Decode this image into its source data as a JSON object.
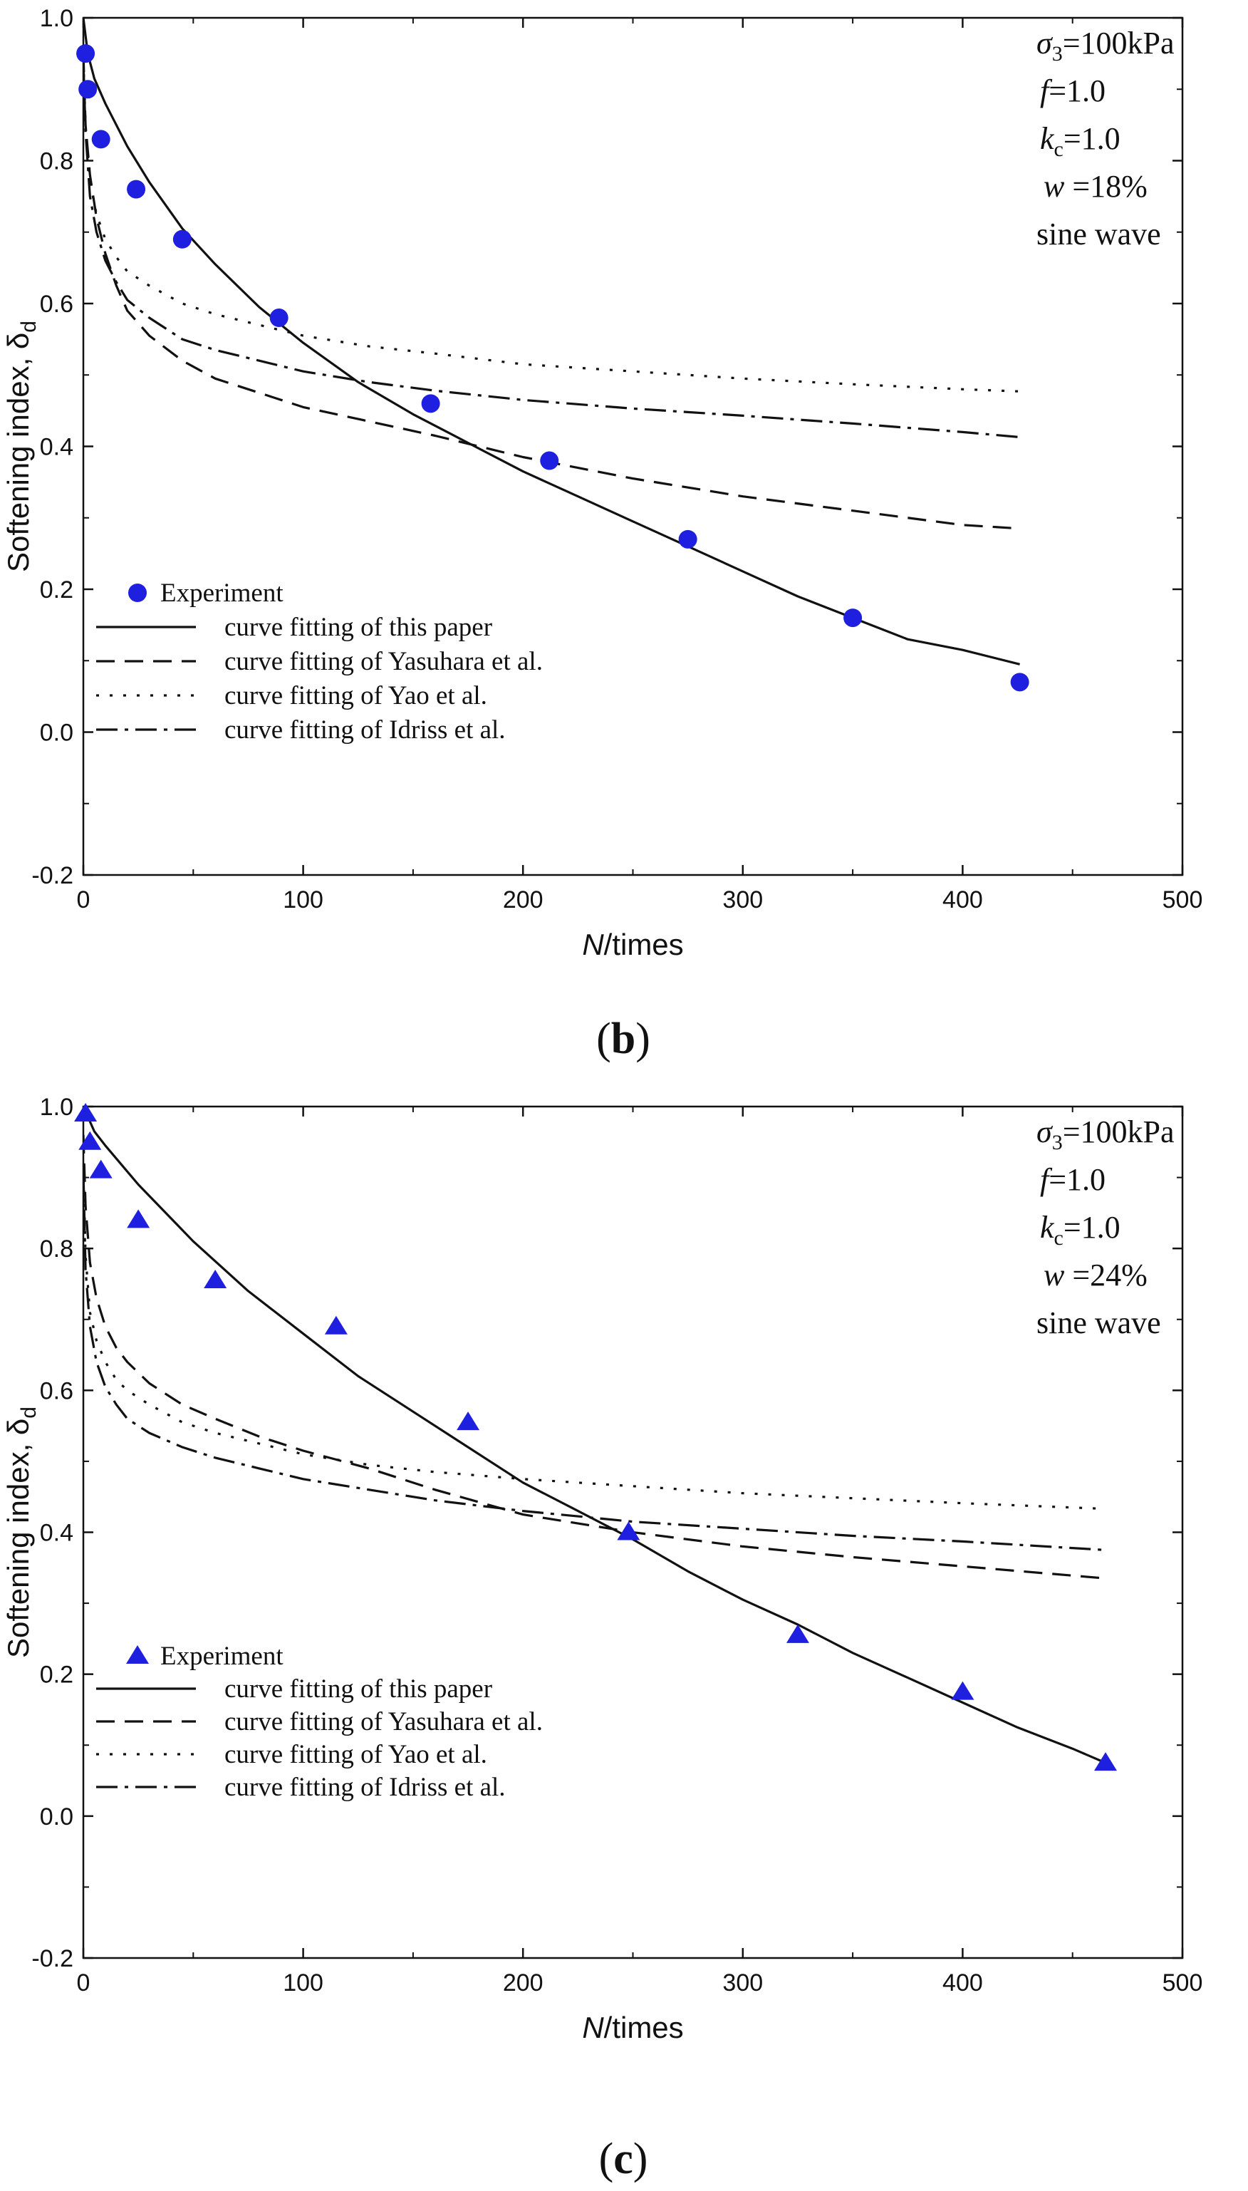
{
  "figure": {
    "panels": [
      {
        "label": "b",
        "annotation": {
          "sigma_symbol": "σ",
          "sigma_sub": "3",
          "sigma_value": "=100kPa",
          "f_symbol": "f",
          "f_value": "=1.0",
          "kc_symbol": "k",
          "kc_sub": "c",
          "kc_value": "=1.0",
          "w_symbol": "w",
          "w_value": " =18%",
          "wave": "sine wave"
        }
      },
      {
        "label": "c",
        "annotation": {
          "sigma_symbol": "σ",
          "sigma_sub": "3",
          "sigma_value": "=100kPa",
          "f_symbol": "f",
          "f_value": "=1.0",
          "kc_symbol": "k",
          "kc_sub": "c",
          "kc_value": "=1.0",
          "w_symbol": "w",
          "w_value": " =24%",
          "wave": "sine wave"
        }
      }
    ]
  },
  "chart_data": [
    {
      "type": "scatter",
      "panel": "b",
      "xlabel": "N/times",
      "xlabel_italic": "N",
      "xlabel_rest": "/times",
      "ylabel": "Softening index, δd",
      "ylabel_main": "Softening index, δ",
      "ylabel_sub": "d",
      "xlim": [
        0,
        500
      ],
      "ylim": [
        -0.2,
        1.0
      ],
      "xticks": [
        0,
        100,
        200,
        300,
        400,
        500
      ],
      "yticks": [
        -0.2,
        0.0,
        0.2,
        0.4,
        0.6,
        0.8,
        1.0
      ],
      "ytick_labels": [
        "-0.2",
        "0.0",
        "0.2",
        "0.4",
        "0.6",
        "0.8",
        "1.0"
      ],
      "legend_position": "bottom-left",
      "marker": "circle",
      "series": [
        {
          "name": "Experiment",
          "style": "marker",
          "x": [
            1,
            2,
            8,
            24,
            45,
            89,
            158,
            212,
            275,
            350,
            426
          ],
          "y": [
            0.95,
            0.9,
            0.83,
            0.76,
            0.69,
            0.58,
            0.46,
            0.38,
            0.27,
            0.16,
            0.07
          ]
        },
        {
          "name": "curve fitting of this paper",
          "style": "solid",
          "x": [
            0,
            2,
            5,
            10,
            20,
            30,
            45,
            60,
            80,
            100,
            125,
            150,
            175,
            200,
            225,
            250,
            275,
            300,
            325,
            350,
            375,
            400,
            426
          ],
          "y": [
            1.0,
            0.95,
            0.915,
            0.88,
            0.82,
            0.77,
            0.705,
            0.655,
            0.595,
            0.545,
            0.49,
            0.445,
            0.405,
            0.365,
            0.33,
            0.295,
            0.26,
            0.225,
            0.19,
            0.16,
            0.13,
            0.115,
            0.095
          ]
        },
        {
          "name": "curve fitting of Yasuhara et al.",
          "style": "dashed",
          "x": [
            0,
            1,
            3,
            6,
            10,
            15,
            20,
            30,
            45,
            60,
            80,
            100,
            130,
            160,
            200,
            250,
            300,
            350,
            400,
            426
          ],
          "y": [
            0.95,
            0.85,
            0.78,
            0.72,
            0.67,
            0.625,
            0.59,
            0.555,
            0.52,
            0.495,
            0.475,
            0.455,
            0.435,
            0.415,
            0.385,
            0.355,
            0.33,
            0.31,
            0.29,
            0.285
          ]
        },
        {
          "name": "curve fitting of Yao et al.",
          "style": "dotted",
          "x": [
            0,
            1,
            3,
            6,
            10,
            15,
            20,
            30,
            45,
            60,
            80,
            100,
            130,
            160,
            200,
            250,
            300,
            350,
            400,
            426
          ],
          "y": [
            0.94,
            0.85,
            0.77,
            0.725,
            0.69,
            0.665,
            0.645,
            0.625,
            0.6,
            0.585,
            0.57,
            0.555,
            0.54,
            0.53,
            0.515,
            0.505,
            0.495,
            0.487,
            0.48,
            0.477
          ]
        },
        {
          "name": "curve fitting of Idriss et al.",
          "style": "dashdot",
          "x": [
            0,
            1,
            3,
            6,
            10,
            15,
            20,
            30,
            45,
            60,
            80,
            100,
            130,
            160,
            200,
            250,
            300,
            350,
            400,
            426
          ],
          "y": [
            0.94,
            0.84,
            0.75,
            0.7,
            0.66,
            0.63,
            0.605,
            0.58,
            0.55,
            0.535,
            0.52,
            0.505,
            0.49,
            0.478,
            0.465,
            0.453,
            0.443,
            0.432,
            0.42,
            0.413
          ]
        }
      ]
    },
    {
      "type": "scatter",
      "panel": "c",
      "xlabel": "N/times",
      "xlabel_italic": "N",
      "xlabel_rest": "/times",
      "ylabel": "Softening index, δd",
      "ylabel_main": "Softening index, δ",
      "ylabel_sub": "d",
      "xlim": [
        0,
        500
      ],
      "ylim": [
        -0.2,
        1.0
      ],
      "xticks": [
        0,
        100,
        200,
        300,
        400,
        500
      ],
      "yticks": [
        -0.2,
        0.0,
        0.2,
        0.4,
        0.6,
        0.8,
        1.0
      ],
      "ytick_labels": [
        "-0.2",
        "0.0",
        "0.2",
        "0.4",
        "0.6",
        "0.8",
        "1.0"
      ],
      "legend_position": "bottom-left",
      "marker": "triangle",
      "series": [
        {
          "name": "Experiment",
          "style": "marker",
          "x": [
            1,
            3,
            8,
            25,
            60,
            115,
            175,
            248,
            325,
            400,
            465
          ],
          "y": [
            0.99,
            0.95,
            0.91,
            0.84,
            0.755,
            0.69,
            0.555,
            0.4,
            0.255,
            0.175,
            0.075
          ]
        },
        {
          "name": "curve fitting of this paper",
          "style": "solid",
          "x": [
            0,
            5,
            10,
            25,
            50,
            75,
            100,
            125,
            150,
            175,
            200,
            225,
            250,
            275,
            300,
            325,
            350,
            375,
            400,
            425,
            450,
            465
          ],
          "y": [
            1.0,
            0.965,
            0.945,
            0.89,
            0.81,
            0.74,
            0.68,
            0.62,
            0.57,
            0.52,
            0.47,
            0.43,
            0.39,
            0.345,
            0.305,
            0.27,
            0.23,
            0.195,
            0.16,
            0.125,
            0.095,
            0.075
          ]
        },
        {
          "name": "curve fitting of Yasuhara et al.",
          "style": "dashed",
          "x": [
            0,
            1,
            3,
            6,
            10,
            15,
            20,
            30,
            45,
            60,
            80,
            100,
            130,
            160,
            200,
            250,
            300,
            350,
            400,
            465
          ],
          "y": [
            0.96,
            0.86,
            0.78,
            0.73,
            0.69,
            0.66,
            0.64,
            0.61,
            0.58,
            0.56,
            0.535,
            0.515,
            0.49,
            0.46,
            0.425,
            0.4,
            0.38,
            0.365,
            0.352,
            0.335
          ]
        },
        {
          "name": "curve fitting of Yao et al.",
          "style": "dotted",
          "x": [
            0,
            1,
            3,
            6,
            10,
            15,
            20,
            30,
            45,
            60,
            80,
            100,
            130,
            160,
            200,
            250,
            300,
            350,
            400,
            465
          ],
          "y": [
            0.92,
            0.79,
            0.71,
            0.67,
            0.64,
            0.615,
            0.6,
            0.58,
            0.555,
            0.54,
            0.525,
            0.51,
            0.495,
            0.485,
            0.475,
            0.465,
            0.455,
            0.448,
            0.441,
            0.433
          ]
        },
        {
          "name": "curve fitting of Idriss et al.",
          "style": "dashdot",
          "x": [
            0,
            1,
            3,
            6,
            10,
            15,
            20,
            30,
            45,
            60,
            80,
            100,
            130,
            160,
            200,
            250,
            300,
            350,
            400,
            465
          ],
          "y": [
            0.91,
            0.77,
            0.69,
            0.64,
            0.605,
            0.58,
            0.56,
            0.54,
            0.52,
            0.505,
            0.49,
            0.475,
            0.46,
            0.445,
            0.43,
            0.415,
            0.405,
            0.395,
            0.387,
            0.375
          ]
        }
      ]
    }
  ]
}
